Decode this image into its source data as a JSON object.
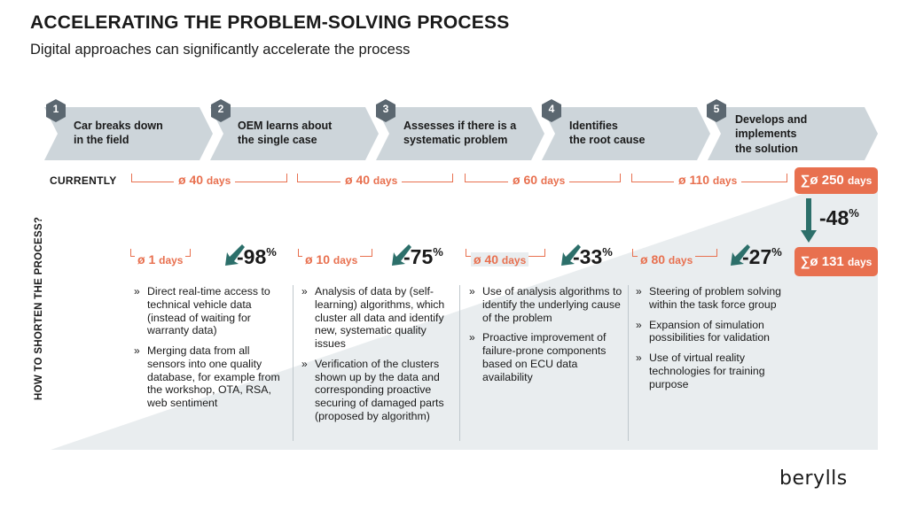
{
  "header": {
    "title": "ACCELERATING THE PROBLEM-SOLVING PROCESS",
    "subtitle": "Digital approaches can significantly accelerate the process"
  },
  "steps": [
    {
      "number": "1",
      "label_l1": "Car breaks down",
      "label_l2": "in the field",
      "label_l3": ""
    },
    {
      "number": "2",
      "label_l1": "OEM learns about",
      "label_l2": "the single case",
      "label_l3": ""
    },
    {
      "number": "3",
      "label_l1": "Assesses if there is a",
      "label_l2": "systematic problem",
      "label_l3": ""
    },
    {
      "number": "4",
      "label_l1": "Identifies",
      "label_l2": "the root cause",
      "label_l3": ""
    },
    {
      "number": "5",
      "label_l1": "Develops and",
      "label_l2": "implements",
      "label_l3": "the solution"
    }
  ],
  "currently": {
    "label": "CURRENTLY",
    "values": [
      {
        "num": "ø 40",
        "unit": "days"
      },
      {
        "num": "ø 40",
        "unit": "days"
      },
      {
        "num": "ø 60",
        "unit": "days"
      },
      {
        "num": "ø 110",
        "unit": "days"
      }
    ],
    "total": {
      "num": "∑ø 250",
      "unit": "days"
    }
  },
  "reduction_total": {
    "value": "-48",
    "unit": "%"
  },
  "improved": {
    "side_label": "HOW TO SHORTEN THE PROCESS?",
    "values": [
      {
        "num": "ø 1",
        "unit": "days",
        "pct": "-98",
        "pct_unit": "%"
      },
      {
        "num": "ø 10",
        "unit": "days",
        "pct": "-75",
        "pct_unit": "%"
      },
      {
        "num": "ø 40",
        "unit": "days",
        "pct": "-33",
        "pct_unit": "%"
      },
      {
        "num": "ø 80",
        "unit": "days",
        "pct": "-27",
        "pct_unit": "%"
      }
    ],
    "total": {
      "num": "∑ø 131",
      "unit": "days"
    }
  },
  "columns": [
    {
      "bullets": [
        "Direct real-time access to technical vehicle data (instead of waiting for warranty data)",
        "Merging data from all sensors into one quality database, for example from the workshop, OTA, RSA, web sentiment"
      ]
    },
    {
      "bullets": [
        "Analysis of data by (self-learning) algorithms, which cluster all data and identify new, systematic quality issues",
        "Verification of the clusters shown up by the data and corresponding proactive securing of damaged parts (proposed by algorithm)"
      ]
    },
    {
      "bullets": [
        "Use of analysis algorithms to identify the underlying cause of the problem",
        "Proactive improvement of failure-prone components based on ECU data availability"
      ]
    },
    {
      "bullets": [
        "Steering of problem solving within the task force group",
        "Expansion of simulation possibilities for validation",
        "Use of virtual reality technologies for training purpose"
      ]
    }
  ],
  "logo": {
    "text": "berylls"
  },
  "colors": {
    "accent": "#e8704f",
    "chevron": "#cdd5da",
    "badge": "#5b6770",
    "background_triangle": "#e9edef"
  }
}
